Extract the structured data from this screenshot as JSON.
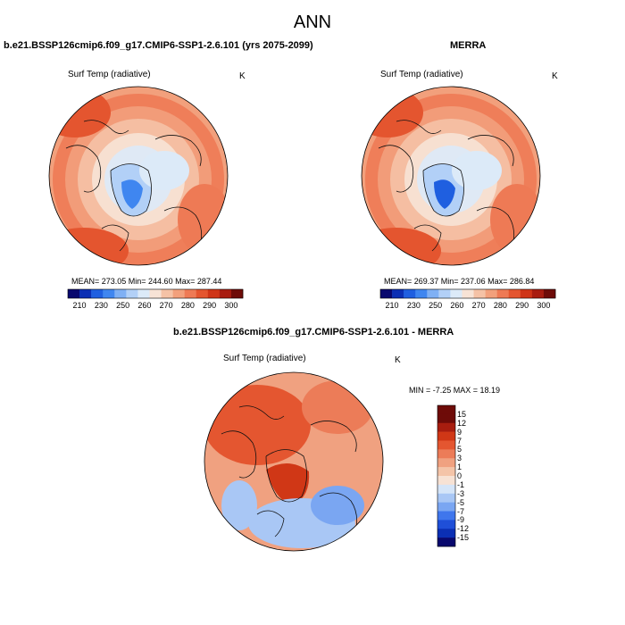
{
  "main_title": "ANN",
  "colors": {
    "abs_scale": [
      "#08086e",
      "#0b2fb4",
      "#1f5fe0",
      "#3f86f0",
      "#7fb0f4",
      "#b2d0f7",
      "#dceaf8",
      "#f7e3d6",
      "#f5c2a6",
      "#f2a07c",
      "#ee7a55",
      "#e4552f",
      "#cf3417",
      "#a81c10",
      "#6e0b08"
    ],
    "diff_scale": [
      "#08086e",
      "#0b2fb4",
      "#1f4fd8",
      "#3f76ec",
      "#7aa6f2",
      "#a9c7f5",
      "#d5e5f8",
      "#f7e2d4",
      "#f4c4a8",
      "#f0a180",
      "#ec7c58",
      "#e45630",
      "#d03716",
      "#a81d0f",
      "#6e0b08"
    ],
    "coast": "#111111"
  },
  "panels": {
    "model": {
      "title": "b.e21.BSSP126cmip6.f09_g17.CMIP6-SSP1-2.6.101 (yrs 2075-2099)",
      "var": "Surf Temp (radiative)",
      "unit": "K",
      "stats": "MEAN= 273.05  Min= 244.60  Max= 287.44",
      "cb_labels": [
        "210",
        "230",
        "250",
        "260",
        "270",
        "280",
        "290",
        "300"
      ]
    },
    "obs": {
      "title": "MERRA",
      "var": "Surf Temp (radiative)",
      "unit": "K",
      "stats": "MEAN= 269.37  Min= 237.06  Max= 286.84",
      "cb_labels": [
        "210",
        "230",
        "250",
        "260",
        "270",
        "280",
        "290",
        "300"
      ]
    },
    "diff": {
      "title": "b.e21.BSSP126cmip6.f09_g17.CMIP6-SSP1-2.6.101 - MERRA",
      "var": "Surf Temp (radiative)",
      "unit": "K",
      "stats": "MIN =  -7.25 MAX =  18.19",
      "cb_labels": [
        "15",
        "12",
        "9",
        "7",
        "5",
        "3",
        "1",
        "0",
        "-1",
        "-3",
        "-5",
        "-7",
        "-9",
        "-12",
        "-15"
      ]
    }
  }
}
